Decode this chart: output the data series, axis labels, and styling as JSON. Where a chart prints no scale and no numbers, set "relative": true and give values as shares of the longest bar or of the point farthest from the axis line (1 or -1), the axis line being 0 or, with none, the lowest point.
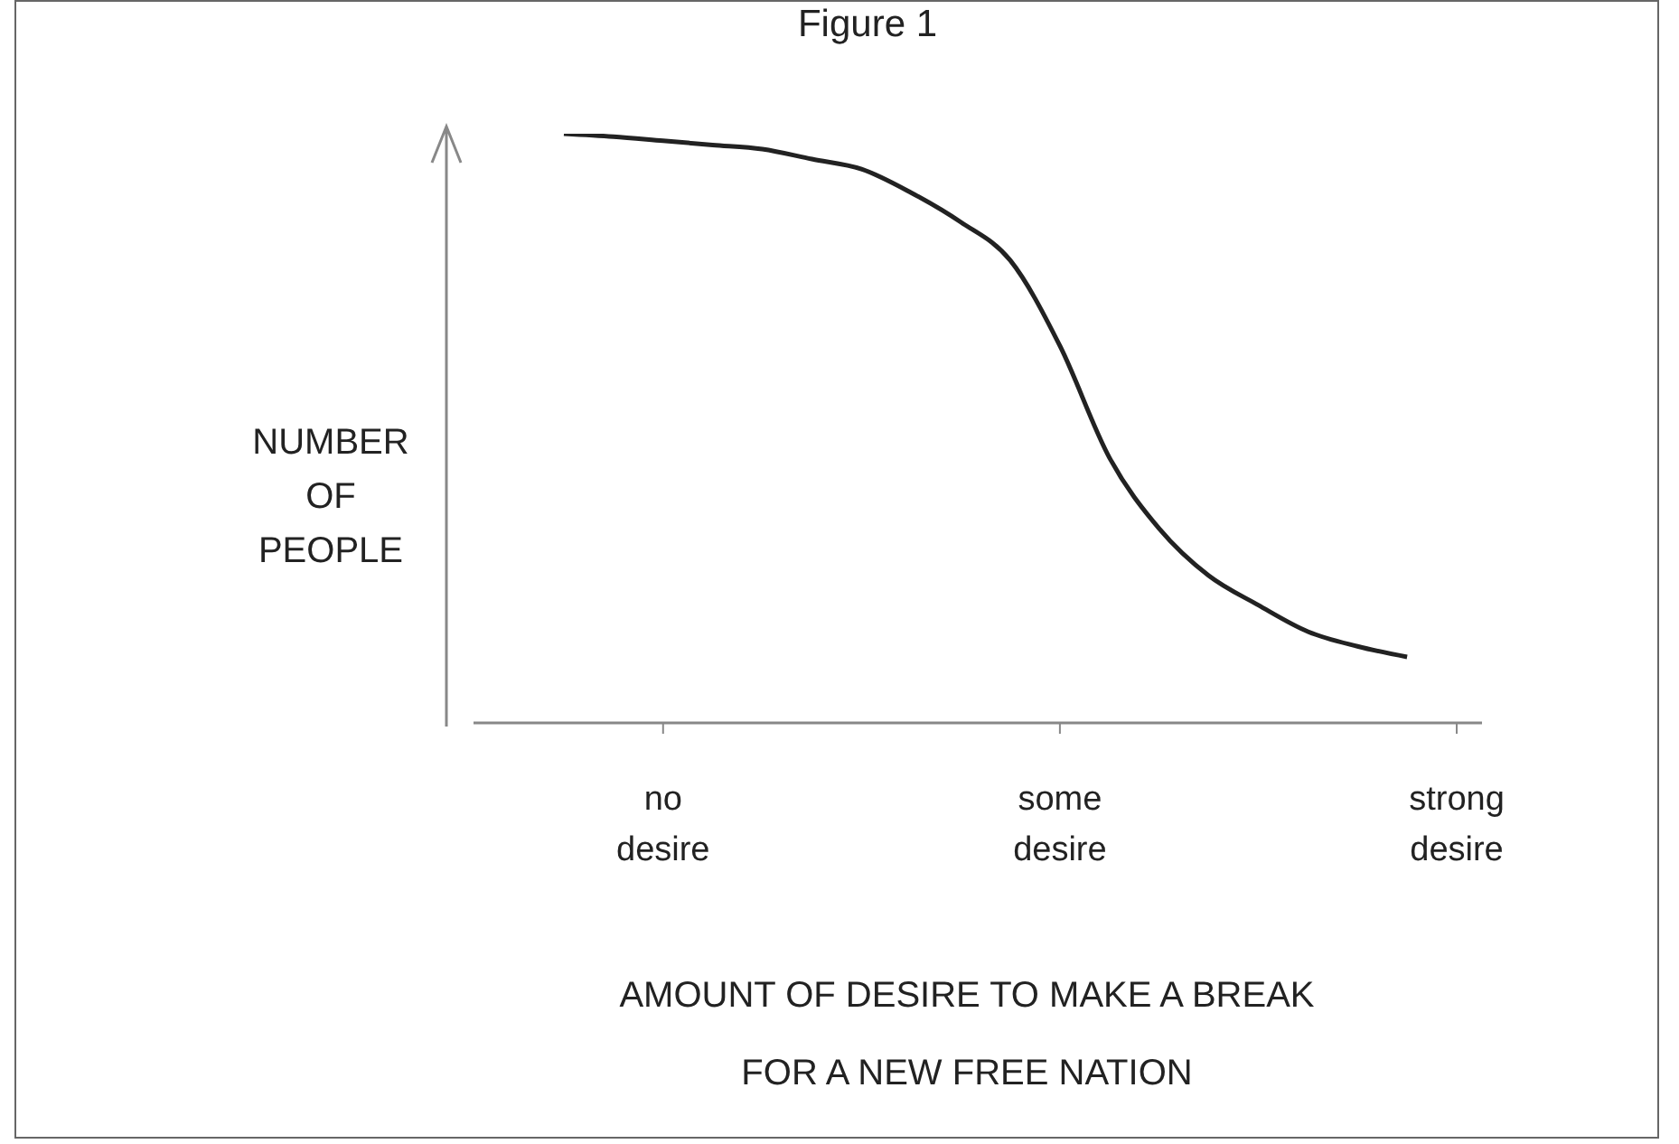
{
  "chart_data": {
    "type": "line",
    "title": "Figure 1",
    "xlabel": "AMOUNT OF DESIRE TO MAKE A BREAK FOR A NEW FREE NATION",
    "ylabel": "NUMBER OF PEOPLE",
    "relative": true,
    "categories": [
      null,
      null,
      "no desire",
      null,
      null,
      null,
      null,
      null,
      null,
      null,
      "some desire",
      null,
      null,
      null,
      null,
      null,
      null,
      null,
      "strong desire"
    ],
    "series": [
      {
        "color": "#222222",
        "values": [
          1,
          0.995,
          0.988,
          0.981,
          0.974,
          0.957,
          0.94,
          0.9,
          0.85,
          0.785,
          0.64,
          0.45,
          0.33,
          0.25,
          0.2,
          0.155,
          0.13,
          0.112,
          null
        ]
      }
    ],
    "marker": "none",
    "line_style": "solid",
    "grid": false,
    "legend": false
  }
}
